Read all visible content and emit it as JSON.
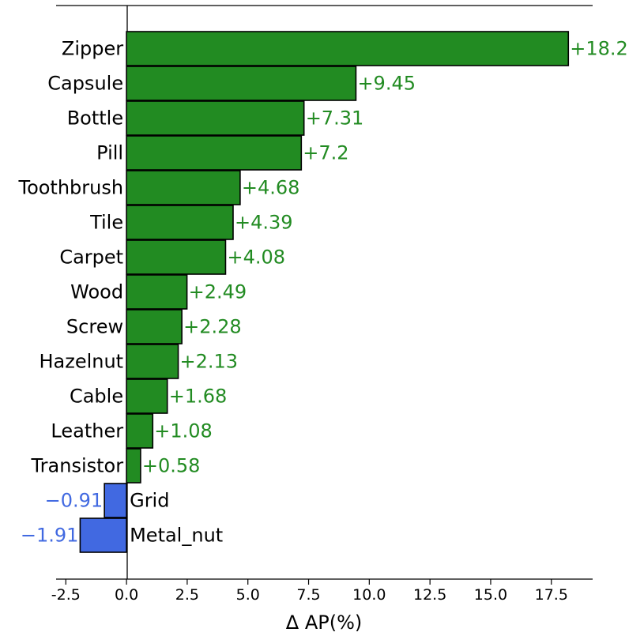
{
  "chart_data": {
    "type": "bar",
    "orientation": "horizontal",
    "title": "",
    "xlabel": "Δ AP(%)",
    "ylabel": "",
    "xlim": [
      -2.9,
      19.2
    ],
    "xticks": [
      -2.5,
      0.0,
      2.5,
      5.0,
      7.5,
      10.0,
      12.5,
      15.0,
      17.5
    ],
    "xtick_labels": [
      "-2.5",
      "0.0",
      "2.5",
      "5.0",
      "7.5",
      "10.0",
      "12.5",
      "15.0",
      "17.5"
    ],
    "grid": false,
    "categories": [
      "Zipper",
      "Capsule",
      "Bottle",
      "Pill",
      "Toothbrush",
      "Tile",
      "Carpet",
      "Wood",
      "Screw",
      "Hazelnut",
      "Cable",
      "Leather",
      "Transistor",
      "Grid",
      "Metal_nut"
    ],
    "values": [
      18.2,
      9.45,
      7.31,
      7.2,
      4.68,
      4.39,
      4.08,
      2.49,
      2.28,
      2.13,
      1.68,
      1.08,
      0.58,
      -0.91,
      -1.91
    ],
    "data_labels": [
      "+18.2",
      "+9.45",
      "+7.31",
      "+7.2",
      "+4.68",
      "+4.39",
      "+4.08",
      "+2.49",
      "+2.28",
      "+2.13",
      "+1.68",
      "+1.08",
      "+0.58",
      "−0.91",
      "−1.91"
    ],
    "colors": {
      "positive": "#228b22",
      "negative": "#4169e1",
      "edge": "#000000"
    }
  }
}
